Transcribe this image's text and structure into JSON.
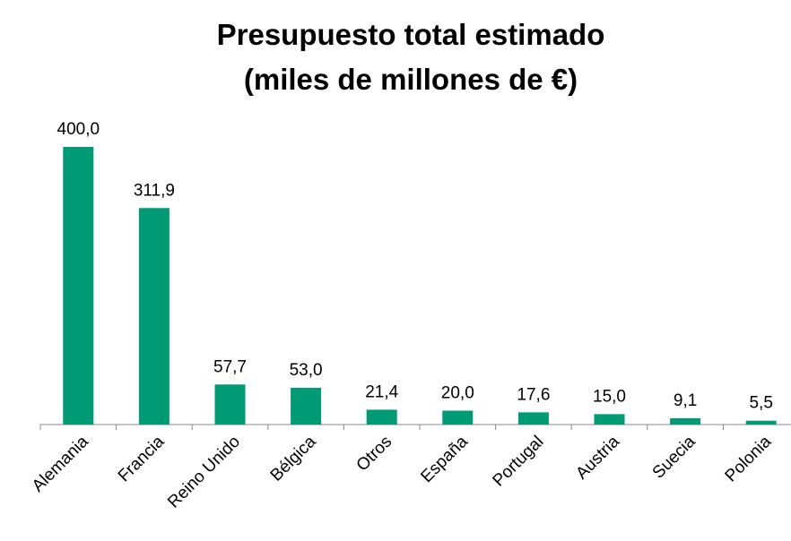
{
  "chart_data": {
    "type": "bar",
    "title": [
      "Presupuesto total estimado",
      "(miles de millones de €)"
    ],
    "categories": [
      "Alemania",
      "Francia",
      "Reino Unido",
      "Bélgica",
      "Otros",
      "España",
      "Portugal",
      "Austria",
      "Suecia",
      "Polonia"
    ],
    "values": [
      400.0,
      311.9,
      57.7,
      53.0,
      21.4,
      20.0,
      17.6,
      15.0,
      9.1,
      5.5
    ],
    "value_labels": [
      "400,0",
      "311,9",
      "57,7",
      "53,0",
      "21,4",
      "20,0",
      "17,6",
      "15,0",
      "9,1",
      "5,5"
    ],
    "color": "#009a74"
  }
}
